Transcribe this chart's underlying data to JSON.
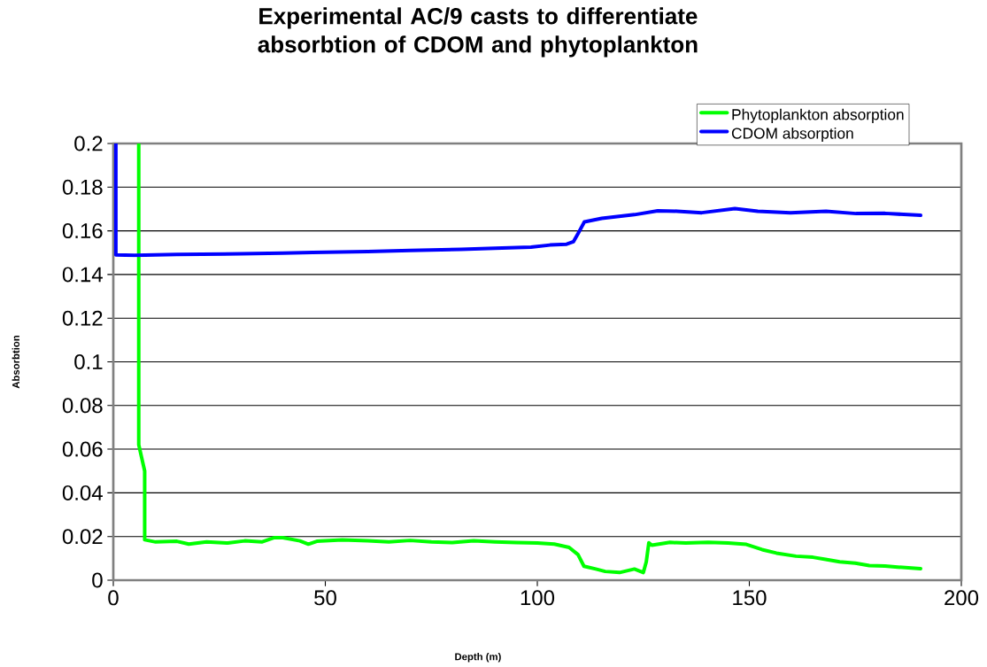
{
  "chart_data": {
    "type": "line",
    "title": "Experimental AC/9 casts to differentiate absorbtion of CDOM and phytoplankton",
    "xlabel": "Depth (m)",
    "ylabel": "Absorbtion",
    "xlim": [
      0,
      200
    ],
    "xticks": [
      0,
      50,
      100,
      150,
      200
    ],
    "ylim": [
      0,
      0.2
    ],
    "yticks": [
      0,
      0.02,
      0.04,
      0.06,
      0.08,
      0.1,
      0.12,
      0.14,
      0.16,
      0.18,
      0.2
    ],
    "grid": "y",
    "legend": "top right",
    "marker": "none",
    "line_style": "solid",
    "series": [
      {
        "name": "Phytoplankton absorption",
        "color": "#00ff00",
        "x": [
          6.0,
          6.0,
          7.4,
          7.4,
          10,
          15,
          17.8,
          22,
          27,
          31,
          35,
          38,
          40,
          44,
          46,
          48,
          54,
          60,
          65,
          70,
          75,
          80,
          85,
          90,
          95,
          100,
          104,
          107.5,
          109.6,
          111,
          113.8,
          116,
          119.4,
          122.9,
          125,
          125.7,
          126.3,
          127,
          131.3,
          135,
          140.3,
          145,
          149.3,
          153,
          156.4,
          161,
          165,
          168,
          171.3,
          175,
          178.3,
          182,
          185,
          190.4
        ],
        "values": [
          0.2,
          0.062,
          0.05,
          0.0185,
          0.0175,
          0.0178,
          0.0165,
          0.0175,
          0.017,
          0.018,
          0.0175,
          0.0195,
          0.0195,
          0.018,
          0.0165,
          0.0178,
          0.0185,
          0.018,
          0.0175,
          0.0182,
          0.0175,
          0.0172,
          0.018,
          0.0175,
          0.0172,
          0.017,
          0.0165,
          0.015,
          0.0117,
          0.0064,
          0.0051,
          0.004,
          0.0035,
          0.0051,
          0.0035,
          0.0084,
          0.0171,
          0.016,
          0.0173,
          0.017,
          0.0173,
          0.017,
          0.0164,
          0.014,
          0.0124,
          0.011,
          0.0105,
          0.0095,
          0.0084,
          0.0078,
          0.0067,
          0.0065,
          0.006,
          0.0053
        ]
      },
      {
        "name": "CDOM absorption",
        "color": "#0000ff",
        "x": [
          0.6,
          0.6,
          5,
          15,
          30,
          40,
          47,
          60,
          70,
          82,
          90,
          98.5,
          103,
          106.9,
          108.5,
          109.6,
          111.1,
          115.2,
          122.9,
          128.4,
          133,
          138.8,
          146.6,
          152,
          159.7,
          168.1,
          175.2,
          182,
          190.4
        ],
        "values": [
          0.2,
          0.149,
          0.1488,
          0.1492,
          0.1495,
          0.1498,
          0.1501,
          0.1505,
          0.151,
          0.1515,
          0.152,
          0.1525,
          0.1535,
          0.1539,
          0.155,
          0.1587,
          0.1641,
          0.1657,
          0.1674,
          0.1692,
          0.169,
          0.1683,
          0.1702,
          0.169,
          0.1683,
          0.169,
          0.1679,
          0.168,
          0.1671
        ]
      }
    ]
  }
}
